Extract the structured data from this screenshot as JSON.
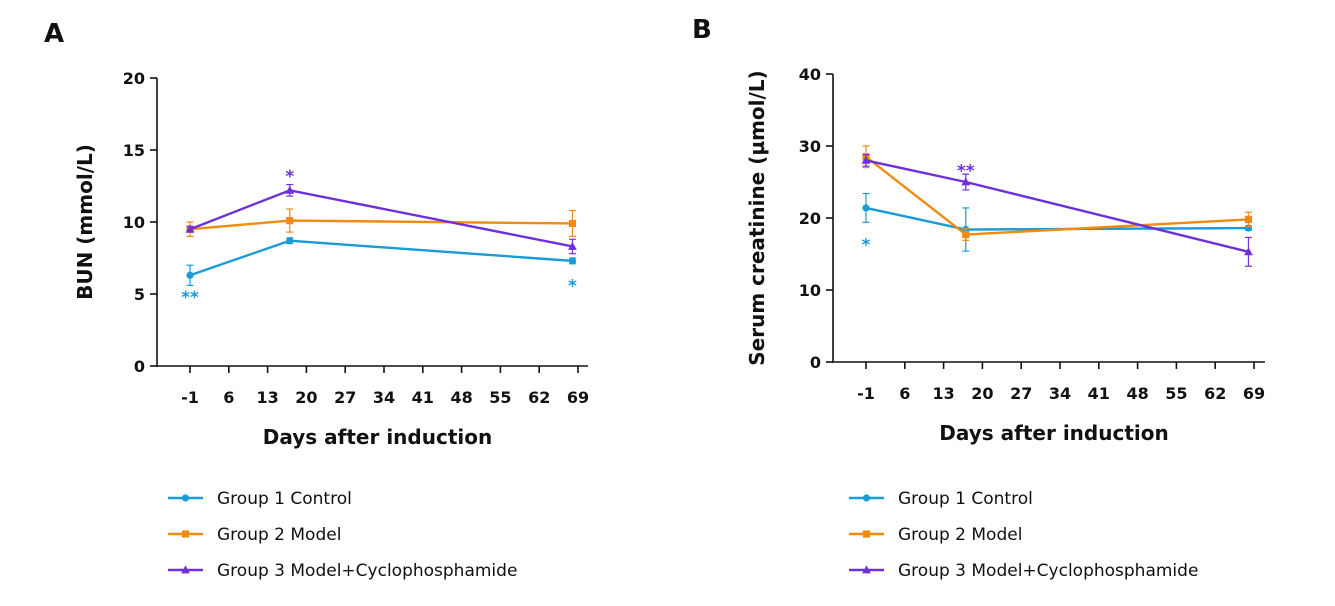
{
  "chart_data": [
    {
      "panel": "A",
      "type": "line",
      "ylabel": "BUN (mmol/L)",
      "xlabel": "Days after induction",
      "x_ticks": [
        "-1",
        "6",
        "13",
        "20",
        "27",
        "34",
        "41",
        "48",
        "55",
        "62",
        "69"
      ],
      "xlim": [
        -6,
        70
      ],
      "ylim": [
        0,
        20
      ],
      "y_ticks": [
        0,
        5,
        10,
        15,
        20
      ],
      "legend": "bottom",
      "grid": false,
      "series": [
        {
          "name": "Group 1 Control",
          "color": "#1a9bd7",
          "marker": "circle",
          "x": [
            -1,
            17,
            68
          ],
          "y": [
            6.3,
            8.7,
            7.3
          ],
          "err": [
            0.7,
            0.2,
            0.2
          ]
        },
        {
          "name": "Group 2 Model",
          "color": "#f28a10",
          "marker": "square",
          "x": [
            -1,
            17,
            68
          ],
          "y": [
            9.5,
            10.1,
            9.9
          ],
          "err": [
            0.5,
            0.8,
            0.9
          ]
        },
        {
          "name": "Group 3 Model+Cyclophosphamide",
          "color": "#7030d8",
          "marker": "triangle",
          "x": [
            -1,
            17,
            68
          ],
          "y": [
            9.5,
            12.2,
            8.3
          ],
          "err": [
            0.2,
            0.4,
            0.5
          ]
        }
      ],
      "annotations": [
        {
          "text": "**",
          "x": -1,
          "y": 4.8,
          "color": "#1a9bd7"
        },
        {
          "text": "*",
          "x": 17,
          "y": 13.2,
          "color": "#7030d8"
        },
        {
          "text": "*",
          "x": 68,
          "y": 5.6,
          "color": "#1a9bd7"
        }
      ]
    },
    {
      "panel": "B",
      "type": "line",
      "ylabel": "Serum creatinine (µmol/L)",
      "xlabel": "Days after induction",
      "x_ticks": [
        "-1",
        "6",
        "13",
        "20",
        "27",
        "34",
        "41",
        "48",
        "55",
        "62",
        "69"
      ],
      "xlim": [
        -6,
        70
      ],
      "ylim": [
        0,
        40
      ],
      "y_ticks": [
        0,
        10,
        20,
        30,
        40
      ],
      "legend": "bottom",
      "grid": false,
      "series": [
        {
          "name": "Group 1 Control",
          "color": "#1a9bd7",
          "marker": "circle",
          "x": [
            -1,
            17,
            68
          ],
          "y": [
            21.4,
            18.4,
            18.6
          ],
          "err": [
            2.0,
            3.0,
            0.3
          ]
        },
        {
          "name": "Group 2 Model",
          "color": "#f28a10",
          "marker": "square",
          "x": [
            -1,
            17,
            68
          ],
          "y": [
            28.5,
            17.7,
            19.8
          ],
          "err": [
            1.5,
            0.8,
            1.0
          ]
        },
        {
          "name": "Group 3 Model+Cyclophosphamide",
          "color": "#7030d8",
          "marker": "triangle",
          "x": [
            -1,
            17,
            68
          ],
          "y": [
            28.0,
            25.0,
            15.3
          ],
          "err": [
            0.8,
            1.1,
            2.0
          ]
        }
      ],
      "annotations": [
        {
          "text": "*",
          "x": -1,
          "y": 16.3,
          "color": "#1a9bd7"
        },
        {
          "text": "**",
          "x": 17,
          "y": 26.6,
          "color": "#7030d8"
        }
      ]
    }
  ]
}
